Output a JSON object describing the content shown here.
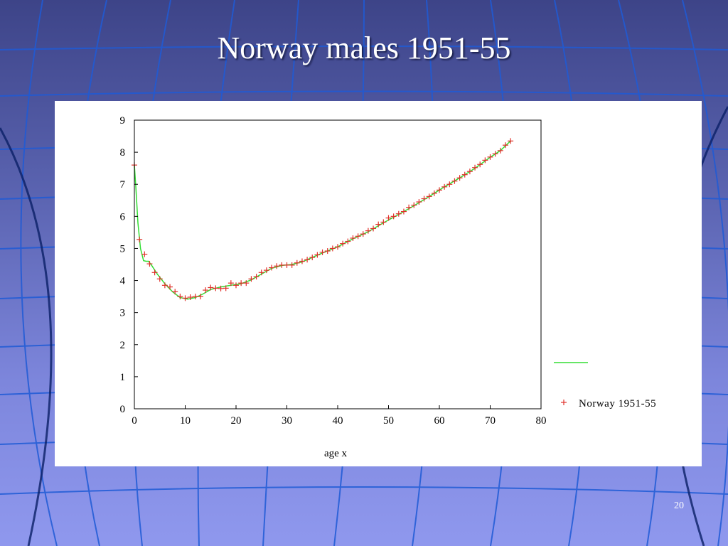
{
  "slide": {
    "title": "Norway males 1951-55",
    "page_number": "20"
  },
  "colors": {
    "marker": "#e0302a",
    "fit_line": "#33dd33",
    "axis": "#000000"
  },
  "chart_data": {
    "type": "scatter",
    "title": "",
    "xlabel": "age x",
    "ylabel": "",
    "xlim": [
      0,
      80
    ],
    "ylim": [
      0,
      9
    ],
    "x_ticks": [
      0,
      10,
      20,
      30,
      40,
      50,
      60,
      70,
      80
    ],
    "y_ticks": [
      0,
      1,
      2,
      3,
      4,
      5,
      6,
      7,
      8,
      9
    ],
    "grid": false,
    "legend_position": "right",
    "series": [
      {
        "name": "Norway 1951-55",
        "marker": "plus",
        "points": [
          [
            0,
            7.6
          ],
          [
            1,
            5.28
          ],
          [
            2,
            4.82
          ],
          [
            3,
            4.52
          ],
          [
            4,
            4.25
          ],
          [
            5,
            4.05
          ],
          [
            6,
            3.85
          ],
          [
            7,
            3.8
          ],
          [
            8,
            3.65
          ],
          [
            9,
            3.5
          ],
          [
            10,
            3.45
          ],
          [
            11,
            3.48
          ],
          [
            12,
            3.5
          ],
          [
            13,
            3.5
          ],
          [
            14,
            3.7
          ],
          [
            15,
            3.78
          ],
          [
            16,
            3.76
          ],
          [
            17,
            3.75
          ],
          [
            18,
            3.76
          ],
          [
            19,
            3.92
          ],
          [
            20,
            3.85
          ],
          [
            21,
            3.92
          ],
          [
            22,
            3.92
          ],
          [
            23,
            4.05
          ],
          [
            24,
            4.12
          ],
          [
            25,
            4.25
          ],
          [
            26,
            4.32
          ],
          [
            27,
            4.4
          ],
          [
            28,
            4.45
          ],
          [
            29,
            4.48
          ],
          [
            30,
            4.48
          ],
          [
            31,
            4.48
          ],
          [
            32,
            4.55
          ],
          [
            33,
            4.6
          ],
          [
            34,
            4.65
          ],
          [
            35,
            4.72
          ],
          [
            36,
            4.8
          ],
          [
            37,
            4.88
          ],
          [
            38,
            4.92
          ],
          [
            39,
            5.0
          ],
          [
            40,
            5.05
          ],
          [
            41,
            5.15
          ],
          [
            42,
            5.22
          ],
          [
            43,
            5.32
          ],
          [
            44,
            5.38
          ],
          [
            45,
            5.45
          ],
          [
            46,
            5.55
          ],
          [
            47,
            5.62
          ],
          [
            48,
            5.75
          ],
          [
            49,
            5.82
          ],
          [
            50,
            5.95
          ],
          [
            51,
            6.0
          ],
          [
            52,
            6.08
          ],
          [
            53,
            6.15
          ],
          [
            54,
            6.28
          ],
          [
            55,
            6.35
          ],
          [
            56,
            6.45
          ],
          [
            57,
            6.55
          ],
          [
            58,
            6.62
          ],
          [
            59,
            6.72
          ],
          [
            60,
            6.82
          ],
          [
            61,
            6.92
          ],
          [
            62,
            7.0
          ],
          [
            63,
            7.1
          ],
          [
            64,
            7.2
          ],
          [
            65,
            7.3
          ],
          [
            66,
            7.4
          ],
          [
            67,
            7.52
          ],
          [
            68,
            7.62
          ],
          [
            69,
            7.75
          ],
          [
            70,
            7.85
          ],
          [
            71,
            7.95
          ],
          [
            72,
            8.05
          ],
          [
            73,
            8.22
          ],
          [
            74,
            8.35
          ]
        ]
      },
      {
        "marker": "line",
        "points": [
          [
            0,
            7.6
          ],
          [
            0.3,
            6.9
          ],
          [
            0.7,
            5.8
          ],
          [
            1.2,
            5.0
          ],
          [
            1.8,
            4.62
          ],
          [
            2.3,
            4.6
          ],
          [
            2.8,
            4.6
          ],
          [
            3.5,
            4.45
          ],
          [
            4.5,
            4.2
          ],
          [
            6,
            3.9
          ],
          [
            7.5,
            3.65
          ],
          [
            9,
            3.47
          ],
          [
            10.5,
            3.42
          ],
          [
            12,
            3.47
          ],
          [
            13.5,
            3.58
          ],
          [
            15,
            3.72
          ],
          [
            17,
            3.8
          ],
          [
            19,
            3.85
          ],
          [
            21,
            3.9
          ],
          [
            23,
            4.02
          ],
          [
            25,
            4.2
          ],
          [
            27,
            4.38
          ],
          [
            29,
            4.47
          ],
          [
            31,
            4.5
          ],
          [
            33,
            4.58
          ],
          [
            35,
            4.72
          ],
          [
            37,
            4.86
          ],
          [
            40,
            5.05
          ],
          [
            43,
            5.3
          ],
          [
            46,
            5.52
          ],
          [
            49,
            5.8
          ],
          [
            52,
            6.06
          ],
          [
            55,
            6.33
          ],
          [
            58,
            6.62
          ],
          [
            61,
            6.92
          ],
          [
            64,
            7.2
          ],
          [
            67,
            7.5
          ],
          [
            70,
            7.84
          ],
          [
            72,
            8.05
          ],
          [
            74,
            8.35
          ]
        ]
      }
    ]
  }
}
